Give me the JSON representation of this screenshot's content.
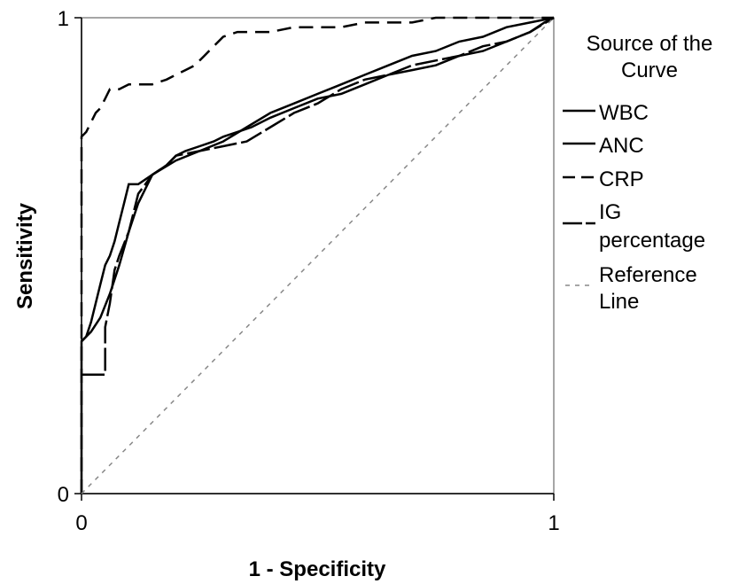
{
  "chart_data": {
    "type": "line",
    "xlabel": "1 - Specificity",
    "ylabel": "Sensitivity",
    "xlim": [
      0,
      1
    ],
    "ylim": [
      0,
      1
    ],
    "x_ticks": [
      "0",
      "1"
    ],
    "y_ticks": [
      "0",
      "1"
    ],
    "grid": false,
    "legend": {
      "title": "Source of the Curve",
      "placement": "right",
      "entries": [
        "WBC",
        "ANC",
        "CRP",
        "IG percentage",
        "Reference Line"
      ]
    },
    "series": [
      {
        "name": "WBC",
        "style": "solid",
        "color": "#000000",
        "x": [
          0,
          0,
          0.02,
          0.04,
          0.06,
          0.08,
          0.1,
          0.12,
          0.15,
          0.2,
          0.25,
          0.3,
          0.35,
          0.4,
          0.45,
          0.5,
          0.55,
          0.6,
          0.65,
          0.7,
          0.75,
          0.8,
          0.85,
          0.9,
          0.95,
          1.0
        ],
        "y": [
          0,
          0.32,
          0.34,
          0.37,
          0.42,
          0.48,
          0.55,
          0.61,
          0.67,
          0.7,
          0.72,
          0.74,
          0.77,
          0.8,
          0.82,
          0.84,
          0.86,
          0.88,
          0.9,
          0.92,
          0.93,
          0.95,
          0.96,
          0.98,
          0.99,
          1.0
        ]
      },
      {
        "name": "ANC",
        "style": "solid",
        "color": "#000000",
        "x": [
          0,
          0.01,
          0.02,
          0.03,
          0.04,
          0.05,
          0.06,
          0.07,
          0.08,
          0.09,
          0.1,
          0.12,
          0.15,
          0.18,
          0.2,
          0.22,
          0.25,
          0.28,
          0.3,
          0.33,
          0.36,
          0.4,
          0.45,
          0.5,
          0.55,
          0.6,
          0.65,
          0.7,
          0.75,
          0.8,
          0.85,
          0.9,
          0.95,
          0.98,
          1.0
        ],
        "y": [
          0.32,
          0.33,
          0.36,
          0.4,
          0.44,
          0.48,
          0.5,
          0.53,
          0.57,
          0.61,
          0.65,
          0.65,
          0.67,
          0.69,
          0.71,
          0.72,
          0.73,
          0.74,
          0.75,
          0.76,
          0.77,
          0.79,
          0.81,
          0.83,
          0.84,
          0.86,
          0.88,
          0.89,
          0.9,
          0.92,
          0.93,
          0.95,
          0.97,
          0.99,
          1.0
        ]
      },
      {
        "name": "CRP",
        "style": "dashed",
        "color": "#000000",
        "x": [
          0,
          0,
          0.01,
          0.02,
          0.03,
          0.04,
          0.05,
          0.06,
          0.07,
          0.08,
          0.1,
          0.12,
          0.15,
          0.18,
          0.2,
          0.22,
          0.24,
          0.26,
          0.28,
          0.3,
          0.33,
          0.36,
          0.4,
          0.45,
          0.5,
          0.55,
          0.6,
          0.65,
          0.7,
          0.75,
          0.8,
          0.85,
          0.9,
          0.95,
          1.0
        ],
        "y": [
          0,
          0.75,
          0.76,
          0.78,
          0.8,
          0.81,
          0.83,
          0.85,
          0.85,
          0.85,
          0.86,
          0.86,
          0.86,
          0.87,
          0.88,
          0.89,
          0.9,
          0.92,
          0.94,
          0.96,
          0.97,
          0.97,
          0.97,
          0.98,
          0.98,
          0.98,
          0.99,
          0.99,
          0.99,
          1.0,
          1.0,
          1.0,
          1.0,
          1.0,
          1.0
        ]
      },
      {
        "name": "IG percentage",
        "style": "dash-long",
        "color": "#000000",
        "x": [
          0,
          0.02,
          0.02,
          0.05,
          0.05,
          0.06,
          0.07,
          0.08,
          0.1,
          0.12,
          0.15,
          0.18,
          0.2,
          0.25,
          0.3,
          0.35,
          0.4,
          0.45,
          0.5,
          0.55,
          0.6,
          0.65,
          0.7,
          0.75,
          0.8,
          0.85,
          0.9,
          0.95,
          1.0
        ],
        "y": [
          0.25,
          0.25,
          0.25,
          0.25,
          0.35,
          0.4,
          0.47,
          0.5,
          0.55,
          0.63,
          0.67,
          0.69,
          0.71,
          0.72,
          0.73,
          0.74,
          0.77,
          0.8,
          0.82,
          0.85,
          0.87,
          0.88,
          0.9,
          0.91,
          0.92,
          0.94,
          0.95,
          0.97,
          1.0
        ]
      },
      {
        "name": "Reference Line",
        "style": "dotted",
        "color": "#888888",
        "x": [
          0,
          1
        ],
        "y": [
          0,
          1
        ]
      }
    ]
  }
}
